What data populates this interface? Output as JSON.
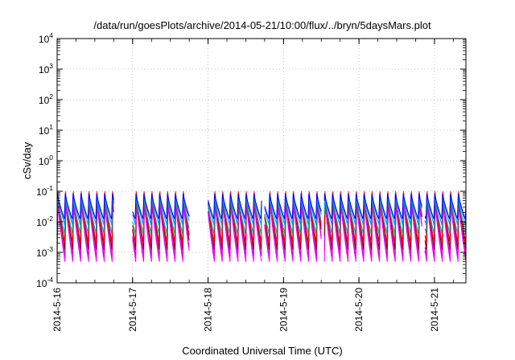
{
  "chart_data": {
    "type": "line",
    "title": "/data/run/goesPlots/archive/2014-05-21/10:00/flux/../bryn/5daysMars.plot",
    "xlabel": "Coordinated Universal Time (UTC)",
    "ylabel": "cSv/day",
    "y_scale": "log",
    "ylim": [
      0.0001,
      10000
    ],
    "xlim": [
      "2014-05-16 00:00",
      "2014-05-21 10:00"
    ],
    "grid": true,
    "y_ticks": [
      {
        "base": "10",
        "exp": "-4"
      },
      {
        "base": "10",
        "exp": "-3"
      },
      {
        "base": "10",
        "exp": "-2"
      },
      {
        "base": "10",
        "exp": "-1"
      },
      {
        "base": "10",
        "exp": "0"
      },
      {
        "base": "10",
        "exp": "1"
      },
      {
        "base": "10",
        "exp": "2"
      },
      {
        "base": "10",
        "exp": "3"
      },
      {
        "base": "10",
        "exp": "4"
      }
    ],
    "x_ticks": [
      "2014-5-16",
      "2014-5-17",
      "2014-5-18",
      "2014-5-19",
      "2014-5-20",
      "2014-5-21"
    ],
    "sawtooth_period_hours": 2.5,
    "data_gaps": [
      {
        "start": "2014-05-16 18:00",
        "end": "2014-05-17 00:00"
      },
      {
        "start": "2014-05-17 18:00",
        "end": "2014-05-18 00:00"
      },
      {
        "start": "2014-05-18 17:00",
        "end": "2014-05-18 18:00"
      },
      {
        "start": "2014-05-19 12:00",
        "end": "2014-05-19 13:00"
      },
      {
        "start": "2014-05-20 20:00",
        "end": "2014-05-20 21:00"
      }
    ],
    "series": [
      {
        "color": "#ff00ff",
        "peak": 0.045,
        "trough": 0.0005
      },
      {
        "color": "#dd00ee",
        "peak": 0.05,
        "trough": 0.0007
      },
      {
        "color": "#8b0000",
        "peak": 0.1,
        "trough": 0.0012
      },
      {
        "color": "#ff0000",
        "peak": 0.1,
        "trough": 0.002
      },
      {
        "color": "#00b0a0",
        "peak": 0.07,
        "trough": 0.004
      },
      {
        "color": "#1e90ff",
        "peak": 0.09,
        "trough": 0.008
      },
      {
        "color": "#0000ff",
        "peak": 0.085,
        "trough": 0.012
      }
    ]
  }
}
